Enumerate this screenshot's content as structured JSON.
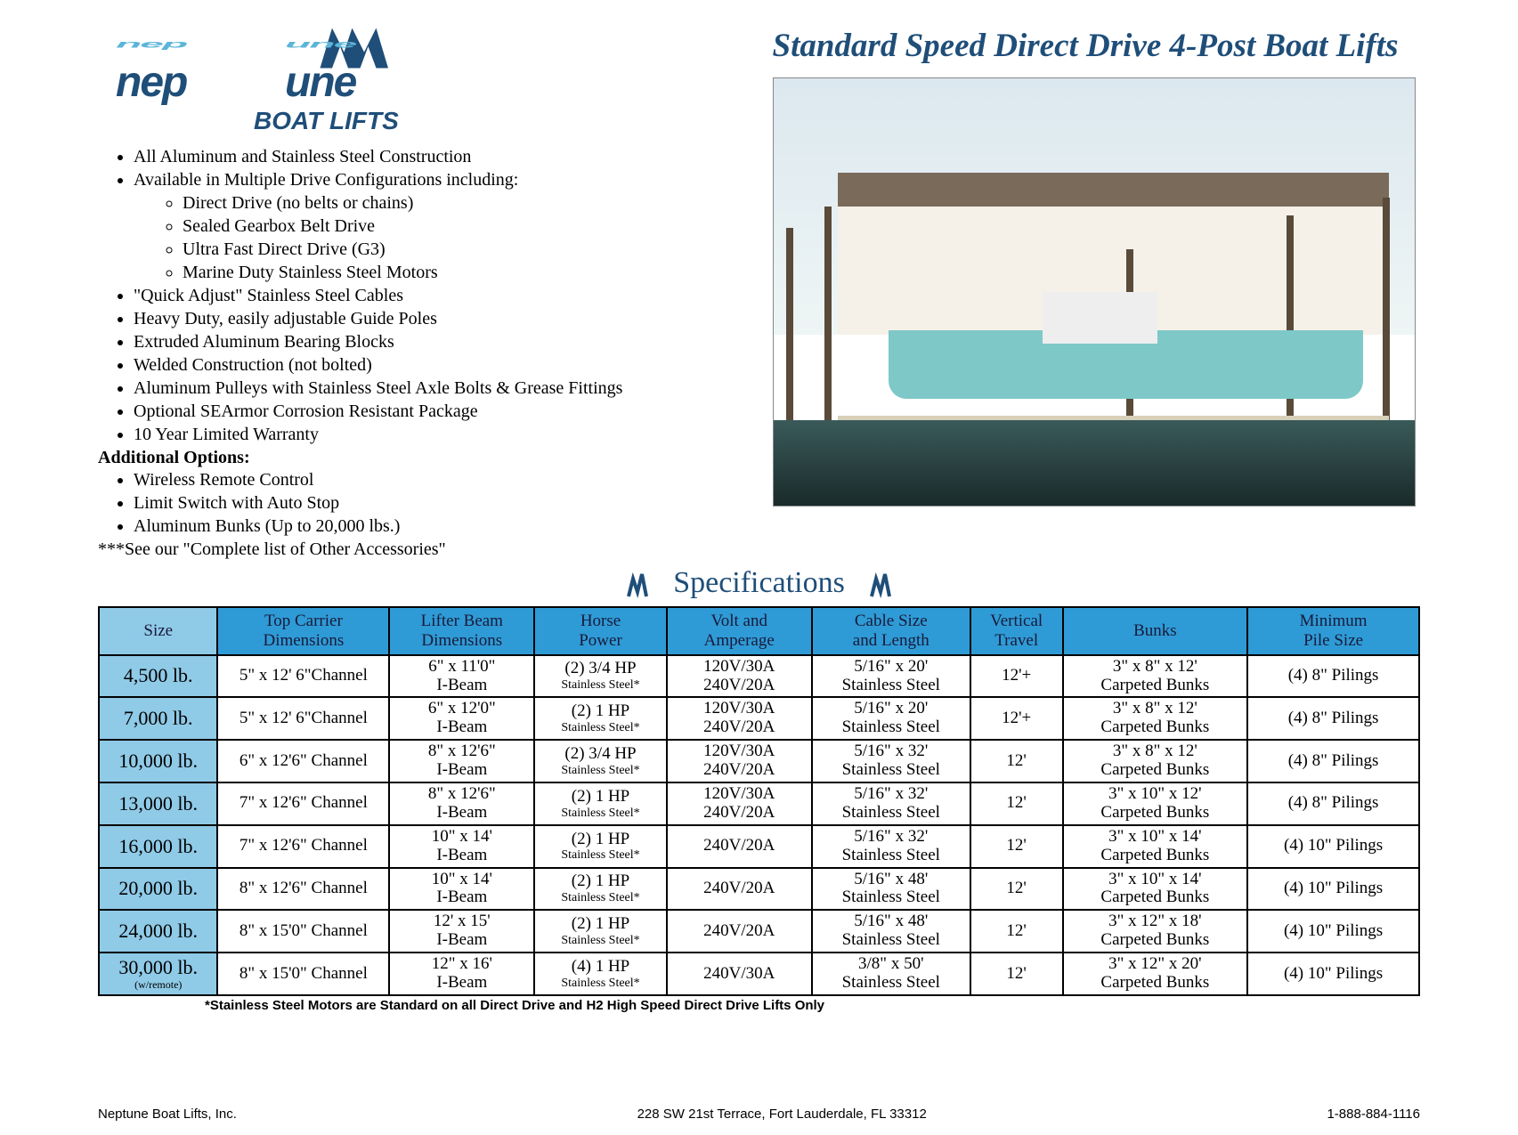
{
  "title": "Standard Speed Direct Drive 4-Post Boat Lifts",
  "logo_text_top": "neptune",
  "logo_text_bottom": "BOAT LIFTS",
  "colors": {
    "brand_blue": "#1f4e79",
    "header_blue": "#2e9bd6",
    "header_light": "#8fcae7",
    "border": "#000000",
    "text": "#000000"
  },
  "features": [
    "All Aluminum and Stainless Steel Construction",
    "Available in Multiple Drive Configurations including:"
  ],
  "sub_features": [
    "Direct Drive (no belts or chains)",
    "Sealed Gearbox Belt Drive",
    "Ultra Fast Direct Drive (G3)",
    "Marine Duty Stainless Steel Motors"
  ],
  "features2": [
    "\"Quick Adjust\" Stainless Steel Cables",
    "Heavy Duty, easily adjustable Guide Poles",
    "Extruded Aluminum Bearing Blocks",
    "Welded Construction (not bolted)",
    "Aluminum Pulleys with Stainless Steel Axle Bolts & Grease Fittings",
    "Optional SEArmor Corrosion Resistant Package",
    "10 Year Limited Warranty"
  ],
  "additional_heading": "Additional Options:",
  "additional_options": [
    "Wireless Remote Control",
    "Limit Switch with Auto Stop",
    "Aluminum Bunks (Up to 20,000 lbs.)"
  ],
  "see_note": "***See our \"Complete list of Other Accessories\"",
  "specs_heading": "Specifications",
  "table": {
    "columns": [
      "Size",
      "Top Carrier\nDimensions",
      "Lifter Beam\nDimensions",
      "Horse\nPower",
      "Volt and\nAmperage",
      "Cable Size\nand Length",
      "Vertical\nTravel",
      "Bunks",
      "Minimum\nPile Size"
    ],
    "col_widths": [
      "9%",
      "13%",
      "11%",
      "10%",
      "11%",
      "12%",
      "7%",
      "14%",
      "13%"
    ],
    "rows": [
      {
        "size": "4,500 lb.",
        "size_sub": "",
        "tc": "5\" x 12' 6\"Channel",
        "lb1": "6\" x  11'0\"",
        "lb2": "I-Beam",
        "hp1": "(2) 3/4 HP",
        "hp2": "Stainless Steel*",
        "va": "120V/30A\n240V/20A",
        "cs1": "5/16\" x 20'",
        "cs2": "Stainless Steel",
        "vt": "12'+",
        "bk1": "3\" x 8\" x 12'",
        "bk2": "Carpeted Bunks",
        "mp": "(4) 8\" Pilings"
      },
      {
        "size": "7,000 lb.",
        "size_sub": "",
        "tc": "5\" x 12' 6\"Channel",
        "lb1": "6\" x 12'0\"",
        "lb2": "I-Beam",
        "hp1": "(2) 1 HP",
        "hp2": "Stainless Steel*",
        "va": "120V/30A\n240V/20A",
        "cs1": "5/16\" x 20'",
        "cs2": "Stainless Steel",
        "vt": "12'+",
        "bk1": "3\" x 8\" x 12'",
        "bk2": "Carpeted Bunks",
        "mp": "(4) 8\" Pilings"
      },
      {
        "size": "10,000 lb.",
        "size_sub": "",
        "tc": "6\" x 12'6\" Channel",
        "lb1": "8\" x 12'6\"",
        "lb2": "I-Beam",
        "hp1": "(2) 3/4 HP",
        "hp2": "Stainless Steel*",
        "va": "120V/30A\n240V/20A",
        "cs1": "5/16\" x 32'",
        "cs2": "Stainless Steel",
        "vt": "12'",
        "bk1": "3\" x 8\" x 12'",
        "bk2": "Carpeted Bunks",
        "mp": "(4) 8\" Pilings"
      },
      {
        "size": "13,000 lb.",
        "size_sub": "",
        "tc": "7\" x 12'6\" Channel",
        "lb1": "8\" x 12'6\"",
        "lb2": "I-Beam",
        "hp1": "(2) 1 HP",
        "hp2": "Stainless Steel*",
        "va": "120V/30A\n240V/20A",
        "cs1": "5/16\" x 32'",
        "cs2": "Stainless Steel",
        "vt": "12'",
        "bk1": "3\" x 10\" x 12'",
        "bk2": "Carpeted Bunks",
        "mp": "(4) 8\" Pilings"
      },
      {
        "size": "16,000 lb.",
        "size_sub": "",
        "tc": "7\" x 12'6\" Channel",
        "lb1": "10\" x 14'",
        "lb2": "I-Beam",
        "hp1": "(2) 1 HP",
        "hp2": "Stainless Steel*",
        "va": "240V/20A",
        "cs1": "5/16\" x 32'",
        "cs2": "Stainless Steel",
        "vt": "12'",
        "bk1": "3\" x 10\" x 14'",
        "bk2": "Carpeted Bunks",
        "mp": "(4) 10\" Pilings"
      },
      {
        "size": "20,000 lb.",
        "size_sub": "",
        "tc": "8\" x 12'6\" Channel",
        "lb1": "10\" x 14'",
        "lb2": "I-Beam",
        "hp1": "(2) 1 HP",
        "hp2": "Stainless Steel*",
        "va": "240V/20A",
        "cs1": "5/16\" x 48'",
        "cs2": "Stainless Steel",
        "vt": "12'",
        "bk1": "3\" x 10\" x 14'",
        "bk2": "Carpeted Bunks",
        "mp": "(4) 10\" Pilings"
      },
      {
        "size": "24,000 lb.",
        "size_sub": "",
        "tc": "8\" x 15'0\" Channel",
        "lb1": "12' x 15'",
        "lb2": "I-Beam",
        "hp1": "(2) 1 HP",
        "hp2": "Stainless Steel*",
        "va": "240V/20A",
        "cs1": "5/16\" x 48'",
        "cs2": "Stainless Steel",
        "vt": "12'",
        "bk1": "3\" x 12\" x 18'",
        "bk2": "Carpeted Bunks",
        "mp": "(4) 10\" Pilings"
      },
      {
        "size": "30,000 lb.",
        "size_sub": "(w/remote)",
        "tc": "8\" x 15'0\" Channel",
        "lb1": "12\" x 16'",
        "lb2": "I-Beam",
        "hp1": "(4) 1 HP",
        "hp2": "Stainless Steel*",
        "va": "240V/30A",
        "cs1": "3/8\" x 50'",
        "cs2": "Stainless Steel",
        "vt": "12'",
        "bk1": "3\" x 12\" x 20'",
        "bk2": "Carpeted Bunks",
        "mp": "(4) 10\" Pilings"
      }
    ]
  },
  "footnote": "*Stainless Steel Motors are Standard on all Direct Drive and H2 High Speed Direct Drive Lifts Only",
  "footer": {
    "company": "Neptune Boat Lifts, Inc.",
    "address": "228 SW 21st Terrace, Fort Lauderdale, FL 33312",
    "phone": "1-888-884-1116"
  }
}
